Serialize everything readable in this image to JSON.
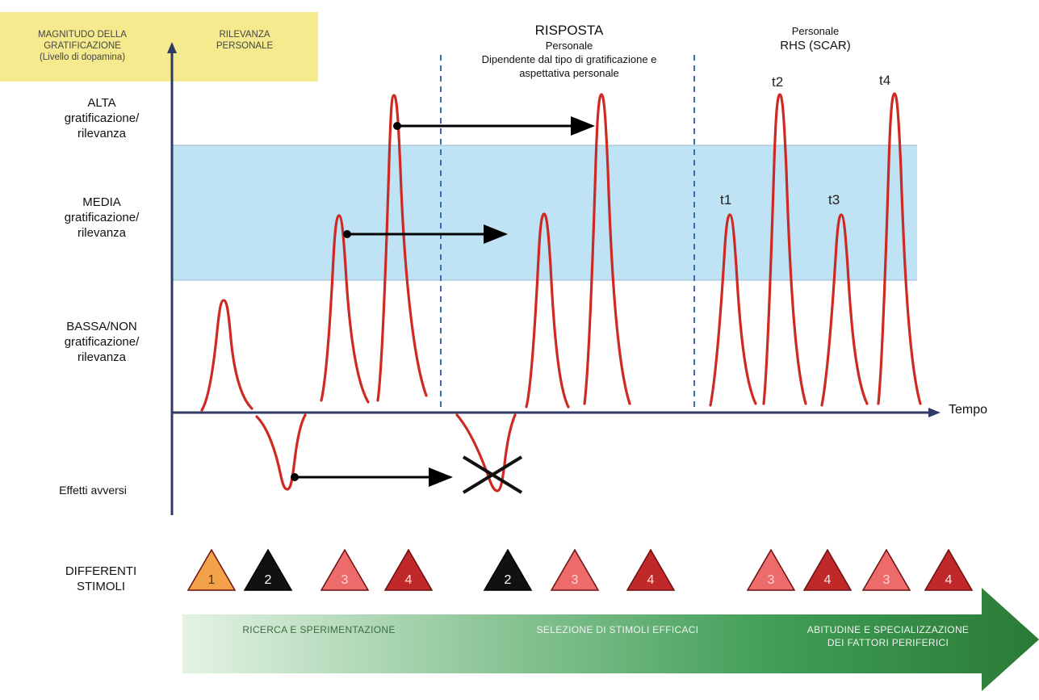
{
  "header": {
    "col1": [
      "MAGNITUDO DELLA",
      "GRATIFICAZIONE",
      "(Livello di dopamina)"
    ],
    "col2": [
      "RILEVANZA",
      "PERSONALE"
    ]
  },
  "top_labels": {
    "risposta_title": "RISPOSTA",
    "risposta_lines": [
      "Personale",
      "Dipendente dal tipo di gratificazione e",
      "aspettativa personale"
    ],
    "rhs_lines": [
      "Personale",
      "RHS (SCAR)"
    ]
  },
  "levels": {
    "alta": [
      "ALTA",
      "gratificazione/",
      "rilevanza"
    ],
    "media": [
      "MEDIA",
      "gratificazione/",
      "rilevanza"
    ],
    "bassa": [
      "BASSA/NON",
      "gratificazione/",
      "rilevanza"
    ],
    "avversi": "Effetti avversi"
  },
  "axis": {
    "x_label": "Tempo"
  },
  "time_labels": [
    "t1",
    "t2",
    "t3",
    "t4"
  ],
  "stimuli_label": [
    "DIFFERENTI",
    "STIMOLI"
  ],
  "stimuli": [
    {
      "num": "1",
      "kind": "orange"
    },
    {
      "num": "2",
      "kind": "black"
    },
    {
      "num": "3",
      "kind": "light"
    },
    {
      "num": "4",
      "kind": "dark"
    },
    {
      "num": "2",
      "kind": "black"
    },
    {
      "num": "3",
      "kind": "light"
    },
    {
      "num": "4",
      "kind": "dark"
    },
    {
      "num": "3",
      "kind": "light"
    },
    {
      "num": "4",
      "kind": "dark"
    },
    {
      "num": "3",
      "kind": "light"
    },
    {
      "num": "4",
      "kind": "dark"
    }
  ],
  "phases": {
    "phase1": "RICERCA E SPERIMENTAZIONE",
    "phase2": "SELEZIONE DI STIMOLI EFFICACI",
    "phase3": [
      "ABITUDINE E SPECIALIZZAZIONE",
      "DEI FATTORI PERIFERICI"
    ]
  },
  "colors": {
    "band": "#bfe3f5",
    "curve": "#cc2a22",
    "axis": "#2f3b66",
    "dashed": "#3a6db0",
    "header_bg": "#f6ea8e",
    "tri_orange": "#f4a24a",
    "tri_black": "#111111",
    "tri_light": "#ee6b6b",
    "tri_dark": "#c0282a",
    "arrow_green_dark": "#2e7d32",
    "arrow_green_light": "#e3f2e4"
  }
}
